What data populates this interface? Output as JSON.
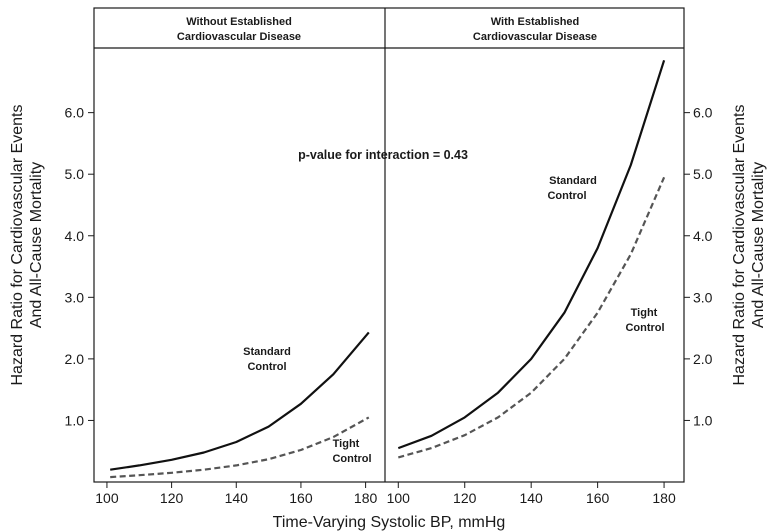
{
  "chart_data": {
    "type": "line",
    "xlabel": "Time-Varying Systolic BP, mmHg",
    "ylabel_line1": "Hazard Ratio for Cardiovascular Events",
    "ylabel_line2": "And All-Cause Mortality",
    "x_ticks": [
      "100",
      "120",
      "140",
      "160",
      "180"
    ],
    "y_ticks": [
      "1.0",
      "2.0",
      "3.0",
      "4.0",
      "5.0",
      "6.0"
    ],
    "xlim": [
      96,
      186
    ],
    "ylim": [
      0,
      7.05
    ],
    "grid": false,
    "annotation": "p-value for interaction = 0.43",
    "panels": [
      {
        "title_line1": "Without Established",
        "title_line2": "Cardiovascular Disease",
        "series": [
          {
            "name": "Standard Control",
            "label_line1": "Standard",
            "label_line2": "Control",
            "style": "solid",
            "x": [
              101,
              110,
              120,
              130,
              140,
              150,
              160,
              170,
              181
            ],
            "y": [
              0.2,
              0.27,
              0.36,
              0.48,
              0.65,
              0.9,
              1.27,
              1.75,
              2.43
            ]
          },
          {
            "name": "Tight Control",
            "label_line1": "Tight",
            "label_line2": "Control",
            "style": "dashed",
            "x": [
              101,
              110,
              120,
              130,
              140,
              150,
              160,
              170,
              181
            ],
            "y": [
              0.08,
              0.11,
              0.15,
              0.2,
              0.27,
              0.37,
              0.52,
              0.73,
              1.05
            ]
          }
        ]
      },
      {
        "title_line1": "With Established",
        "title_line2": "Cardiovascular Disease",
        "series": [
          {
            "name": "Standard Control",
            "label_line1": "Standard",
            "label_line2": "Control",
            "style": "solid",
            "x": [
              100,
              110,
              120,
              130,
              140,
              150,
              160,
              170,
              180
            ],
            "y": [
              0.55,
              0.75,
              1.05,
              1.45,
              2.0,
              2.75,
              3.8,
              5.15,
              6.85
            ]
          },
          {
            "name": "Tight Control",
            "label_line1": "Tight",
            "label_line2": "Control",
            "style": "dashed",
            "x": [
              100,
              110,
              120,
              130,
              140,
              150,
              160,
              170,
              180
            ],
            "y": [
              0.4,
              0.55,
              0.76,
              1.05,
              1.45,
              2.0,
              2.75,
              3.7,
              4.95
            ]
          }
        ]
      }
    ]
  }
}
